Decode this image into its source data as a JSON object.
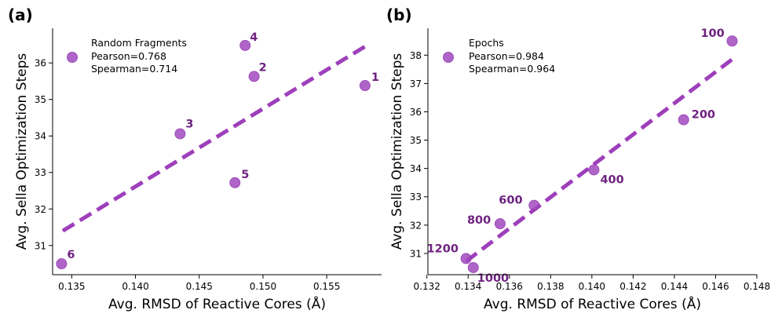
{
  "colors": {
    "marker": "#a24bbf",
    "marker_edge": "#8e2fae",
    "fit_line": "#9e3fbb",
    "point_label": "#6e2280"
  },
  "chart_data": [
    {
      "panel_label": "(a)",
      "type": "scatter",
      "xlabel": "Avg. RMSD of Reactive Cores (Å)",
      "ylabel": "Avg. Sella Optimization Steps",
      "xlim": [
        0.1335,
        0.1593
      ],
      "ylim": [
        30.2,
        36.95
      ],
      "xticks": [
        0.135,
        0.14,
        0.145,
        0.15,
        0.155
      ],
      "xtick_labels": [
        "0.135",
        "0.140",
        "0.145",
        "0.150",
        "0.155"
      ],
      "yticks": [
        31,
        32,
        33,
        34,
        35,
        36
      ],
      "ytick_labels": [
        "31",
        "32",
        "33",
        "34",
        "35",
        "36"
      ],
      "legend": {
        "position": "top-left",
        "label": "Random Fragments",
        "pearson": "Pearson=0.768",
        "spearman": "Spearman=0.714"
      },
      "points": [
        {
          "label": "1",
          "x": 0.158,
          "y": 35.38
        },
        {
          "label": "2",
          "x": 0.1493,
          "y": 35.63
        },
        {
          "label": "3",
          "x": 0.1435,
          "y": 34.06
        },
        {
          "label": "4",
          "x": 0.1486,
          "y": 36.48
        },
        {
          "label": "5",
          "x": 0.1478,
          "y": 32.72
        },
        {
          "label": "6",
          "x": 0.1342,
          "y": 30.5
        }
      ],
      "fit_line": {
        "x": [
          0.1343,
          0.158
        ],
        "y": [
          31.4,
          36.45
        ]
      }
    },
    {
      "panel_label": "(b)",
      "type": "scatter",
      "xlabel": "Avg. RMSD of Reactive Cores (Å)",
      "ylabel": "Avg. Sella Optimization Steps",
      "xlim": [
        0.13205,
        0.148
      ],
      "ylim": [
        30.25,
        38.95
      ],
      "xticks": [
        0.132,
        0.134,
        0.136,
        0.138,
        0.14,
        0.142,
        0.144,
        0.146,
        0.148
      ],
      "xtick_labels": [
        "0.132",
        "0.134",
        "0.136",
        "0.138",
        "0.140",
        "0.142",
        "0.144",
        "0.146",
        "0.148"
      ],
      "yticks": [
        31,
        32,
        33,
        34,
        35,
        36,
        37,
        38
      ],
      "ytick_labels": [
        "31",
        "32",
        "33",
        "34",
        "35",
        "36",
        "37",
        "38"
      ],
      "legend": {
        "position": "top-left",
        "label": "Epochs",
        "pearson": "Pearson=0.984",
        "spearman": "Spearman=0.964"
      },
      "points": [
        {
          "label": "100",
          "x": 0.1468,
          "y": 38.5
        },
        {
          "label": "200",
          "x": 0.14445,
          "y": 35.72
        },
        {
          "label": "400",
          "x": 0.1401,
          "y": 33.95
        },
        {
          "label": "600",
          "x": 0.1372,
          "y": 32.7
        },
        {
          "label": "800",
          "x": 0.13555,
          "y": 32.05
        },
        {
          "label": "1000",
          "x": 0.13425,
          "y": 30.5
        },
        {
          "label": "1200",
          "x": 0.1339,
          "y": 30.82
        }
      ],
      "fit_line": {
        "x": [
          0.1339,
          0.1468
        ],
        "y": [
          30.72,
          37.85
        ]
      }
    }
  ]
}
